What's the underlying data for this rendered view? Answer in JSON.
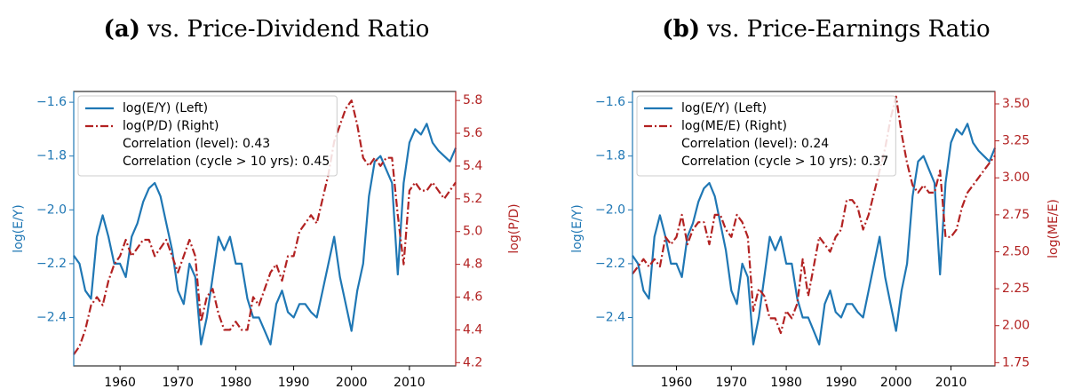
{
  "chart_data": [
    {
      "type": "line",
      "panel_label": "(a)",
      "title": "vs. Price-Dividend Ratio",
      "ylabel": "log(E/Y)",
      "y2label": "log(P/D)",
      "annotations": [
        "Correlation (level): 0.43",
        "Correlation (cycle > 10 yrs): 0.45"
      ],
      "legend": "upper left",
      "x": [
        1952,
        1953,
        1954,
        1955,
        1956,
        1957,
        1958,
        1959,
        1960,
        1961,
        1962,
        1963,
        1964,
        1965,
        1966,
        1967,
        1968,
        1969,
        1970,
        1971,
        1972,
        1973,
        1974,
        1975,
        1976,
        1977,
        1978,
        1979,
        1980,
        1981,
        1982,
        1983,
        1984,
        1985,
        1986,
        1987,
        1988,
        1989,
        1990,
        1991,
        1992,
        1993,
        1994,
        1995,
        1996,
        1997,
        1998,
        1999,
        2000,
        2001,
        2002,
        2003,
        2004,
        2005,
        2006,
        2007,
        2008,
        2009,
        2010,
        2011,
        2012,
        2013,
        2014,
        2015,
        2016,
        2017,
        2018
      ],
      "xlim": [
        1952,
        2018
      ],
      "xticks": [
        1960,
        1970,
        1980,
        1990,
        2000,
        2010
      ],
      "ylim": [
        -2.58,
        -1.56
      ],
      "yticks": [
        {
          "value": -2.4,
          "label": "−2.4"
        },
        {
          "value": -2.2,
          "label": "−2.2"
        },
        {
          "value": -2.0,
          "label": "−2.0"
        },
        {
          "value": -1.8,
          "label": "−1.8"
        },
        {
          "value": -1.6,
          "label": "−1.6"
        }
      ],
      "y2lim": [
        4.18,
        5.855
      ],
      "y2ticks": [
        4.2,
        4.4,
        4.6,
        4.8,
        {
          "value": 5.0,
          "label": "5.0"
        },
        5.2,
        5.4,
        5.6,
        5.8
      ],
      "series": [
        {
          "name": "log(E/Y) (Left)",
          "color": "#1f77b4",
          "axis": "y",
          "values": [
            -2.17,
            -2.2,
            -2.3,
            -2.33,
            -2.1,
            -2.02,
            -2.1,
            -2.2,
            -2.2,
            -2.25,
            -2.1,
            -2.05,
            -1.97,
            -1.92,
            -1.9,
            -1.95,
            -2.05,
            -2.15,
            -2.3,
            -2.35,
            -2.2,
            -2.25,
            -2.5,
            -2.4,
            -2.25,
            -2.1,
            -2.15,
            -2.1,
            -2.2,
            -2.2,
            -2.33,
            -2.4,
            -2.4,
            -2.45,
            -2.5,
            -2.35,
            -2.3,
            -2.38,
            -2.4,
            -2.35,
            -2.35,
            -2.38,
            -2.4,
            -2.3,
            -2.2,
            -2.1,
            -2.25,
            -2.35,
            -2.45,
            -2.3,
            -2.2,
            -1.95,
            -1.82,
            -1.8,
            -1.85,
            -1.9,
            -2.24,
            -1.9,
            -1.75,
            -1.7,
            -1.72,
            -1.68,
            -1.75,
            -1.78,
            -1.8,
            -1.82,
            -1.77
          ]
        },
        {
          "name": "log(P/D) (Right)",
          "color": "#b22222",
          "axis": "y2",
          "values": [
            4.25,
            4.3,
            4.4,
            4.55,
            4.6,
            4.55,
            4.7,
            4.8,
            4.85,
            4.95,
            4.85,
            4.9,
            4.95,
            4.95,
            4.85,
            4.9,
            4.95,
            4.85,
            4.75,
            4.85,
            4.95,
            4.85,
            4.45,
            4.6,
            4.65,
            4.5,
            4.4,
            4.4,
            4.45,
            4.4,
            4.4,
            4.6,
            4.55,
            4.65,
            4.75,
            4.8,
            4.7,
            4.85,
            4.85,
            5.0,
            5.05,
            5.1,
            5.05,
            5.2,
            5.35,
            5.55,
            5.65,
            5.75,
            5.8,
            5.65,
            5.45,
            5.4,
            5.45,
            5.4,
            5.45,
            5.45,
            5.1,
            4.8,
            5.25,
            5.3,
            5.25,
            5.25,
            5.3,
            5.25,
            5.2,
            5.25,
            5.3
          ]
        }
      ]
    },
    {
      "type": "line",
      "panel_label": "(b)",
      "title": "vs. Price-Earnings Ratio",
      "ylabel": "log(E/Y)",
      "y2label": "log(ME/E)",
      "annotations": [
        "Correlation (level): 0.24",
        "Correlation (cycle > 10 yrs): 0.37"
      ],
      "legend": "upper left",
      "x": [
        1952,
        1953,
        1954,
        1955,
        1956,
        1957,
        1958,
        1959,
        1960,
        1961,
        1962,
        1963,
        1964,
        1965,
        1966,
        1967,
        1968,
        1969,
        1970,
        1971,
        1972,
        1973,
        1974,
        1975,
        1976,
        1977,
        1978,
        1979,
        1980,
        1981,
        1982,
        1983,
        1984,
        1985,
        1986,
        1987,
        1988,
        1989,
        1990,
        1991,
        1992,
        1993,
        1994,
        1995,
        1996,
        1997,
        1998,
        1999,
        2000,
        2001,
        2002,
        2003,
        2004,
        2005,
        2006,
        2007,
        2008,
        2009,
        2010,
        2011,
        2012,
        2013,
        2014,
        2015,
        2016,
        2017,
        2018
      ],
      "xlim": [
        1952,
        2018
      ],
      "xticks": [
        1960,
        1970,
        1980,
        1990,
        2000,
        2010
      ],
      "ylim": [
        -2.58,
        -1.56
      ],
      "yticks": [
        {
          "value": -2.4,
          "label": "−2.4"
        },
        {
          "value": -2.2,
          "label": "−2.2"
        },
        {
          "value": -2.0,
          "label": "−2.0"
        },
        {
          "value": -1.8,
          "label": "−1.8"
        },
        {
          "value": -1.6,
          "label": "−1.6"
        }
      ],
      "y2lim": [
        1.728,
        3.584
      ],
      "y2ticks": [
        1.75,
        {
          "value": 2.0,
          "label": "2.00"
        },
        2.25,
        {
          "value": 2.5,
          "label": "2.50"
        },
        2.75,
        {
          "value": 3.0,
          "label": "3.00"
        },
        3.25,
        {
          "value": 3.5,
          "label": "3.50"
        }
      ],
      "series": [
        {
          "name": "log(E/Y) (Left)",
          "color": "#1f77b4",
          "axis": "y",
          "values": [
            -2.17,
            -2.2,
            -2.3,
            -2.33,
            -2.1,
            -2.02,
            -2.1,
            -2.2,
            -2.2,
            -2.25,
            -2.1,
            -2.05,
            -1.97,
            -1.92,
            -1.9,
            -1.95,
            -2.05,
            -2.15,
            -2.3,
            -2.35,
            -2.2,
            -2.25,
            -2.5,
            -2.4,
            -2.25,
            -2.1,
            -2.15,
            -2.1,
            -2.2,
            -2.2,
            -2.33,
            -2.4,
            -2.4,
            -2.45,
            -2.5,
            -2.35,
            -2.3,
            -2.38,
            -2.4,
            -2.35,
            -2.35,
            -2.38,
            -2.4,
            -2.3,
            -2.2,
            -2.1,
            -2.25,
            -2.35,
            -2.45,
            -2.3,
            -2.2,
            -1.95,
            -1.82,
            -1.8,
            -1.85,
            -1.9,
            -2.24,
            -1.9,
            -1.75,
            -1.7,
            -1.72,
            -1.68,
            -1.75,
            -1.78,
            -1.8,
            -1.82,
            -1.77
          ]
        },
        {
          "name": "log(ME/E) (Right)",
          "color": "#b22222",
          "axis": "y2",
          "values": [
            2.35,
            2.4,
            2.45,
            2.4,
            2.45,
            2.4,
            2.6,
            2.55,
            2.6,
            2.75,
            2.55,
            2.65,
            2.7,
            2.7,
            2.55,
            2.75,
            2.75,
            2.65,
            2.6,
            2.75,
            2.7,
            2.6,
            2.1,
            2.25,
            2.2,
            2.05,
            2.05,
            1.95,
            2.1,
            2.05,
            2.15,
            2.45,
            2.2,
            2.4,
            2.6,
            2.55,
            2.5,
            2.6,
            2.65,
            2.85,
            2.85,
            2.8,
            2.65,
            2.75,
            2.9,
            3.05,
            3.2,
            3.4,
            3.55,
            3.3,
            3.1,
            2.95,
            2.9,
            2.95,
            2.9,
            2.9,
            3.05,
            2.6,
            2.6,
            2.65,
            2.8,
            2.9,
            2.95,
            3.0,
            3.05,
            3.1,
            3.15
          ]
        }
      ]
    }
  ]
}
